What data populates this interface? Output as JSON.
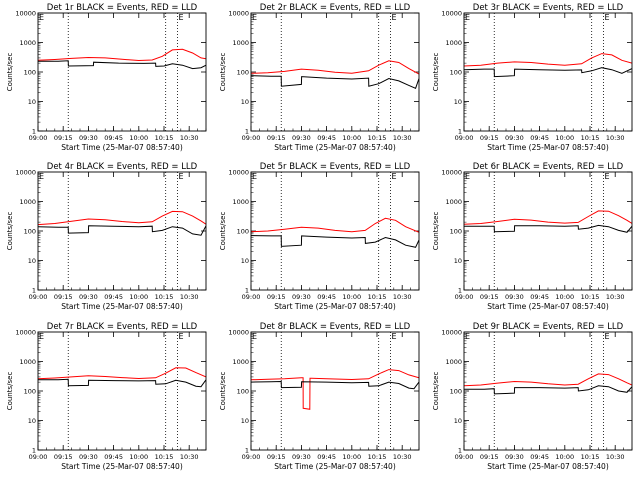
{
  "figure": {
    "x_ticks": [
      "09:00",
      "09:15",
      "09:30",
      "09:45",
      "10:00",
      "10:15",
      "10:30"
    ],
    "y_ticks": [
      "1",
      "10",
      "100",
      "1000",
      "10000"
    ],
    "marker_labels": [
      "E",
      "E"
    ]
  },
  "chart_data": [
    {
      "type": "line",
      "title": "Det 1r BLACK = Events, RED = LLD",
      "xlabel": "Start Time (25-Mar-07 08:57:40)",
      "ylabel": "Counts/sec",
      "y_scale": "log",
      "ylim": [
        1,
        10000
      ],
      "xlim_minutes": [
        0,
        100
      ],
      "x_tick_minutes": [
        0,
        15,
        30,
        45,
        60,
        75,
        90
      ],
      "dotted_vlines_minutes": [
        18,
        76,
        83
      ],
      "series": [
        {
          "name": "Events",
          "color": "#000000",
          "x": [
            0,
            12,
            18,
            18.1,
            33,
            33.1,
            48,
            63,
            70,
            70.1,
            75,
            80,
            86,
            92,
            97,
            100
          ],
          "y": [
            230,
            230,
            240,
            160,
            165,
            215,
            200,
            195,
            200,
            155,
            160,
            190,
            170,
            130,
            140,
            170
          ]
        },
        {
          "name": "LLD",
          "color": "#ff0000",
          "x": [
            0,
            10,
            20,
            30,
            40,
            50,
            60,
            68,
            74,
            80,
            86,
            92,
            97,
            100
          ],
          "y": [
            250,
            265,
            290,
            310,
            300,
            270,
            245,
            255,
            340,
            560,
            590,
            440,
            300,
            280
          ]
        }
      ]
    },
    {
      "type": "line",
      "title": "Det 2r BLACK = Events, RED = LLD",
      "xlabel": "Start Time (25-Mar-07 08:57:40)",
      "ylabel": "Counts/sec",
      "y_scale": "log",
      "ylim": [
        1,
        10000
      ],
      "xlim_minutes": [
        0,
        100
      ],
      "x_tick_minutes": [
        0,
        15,
        30,
        45,
        60,
        75,
        90
      ],
      "dotted_vlines_minutes": [
        18,
        76,
        83
      ],
      "series": [
        {
          "name": "Events",
          "color": "#000000",
          "x": [
            0,
            12,
            18,
            18.1,
            30,
            30.1,
            45,
            60,
            70,
            70.1,
            76,
            82,
            88,
            94,
            98,
            100
          ],
          "y": [
            75,
            72,
            72,
            33,
            38,
            70,
            62,
            58,
            62,
            33,
            40,
            60,
            50,
            35,
            28,
            60
          ]
        },
        {
          "name": "LLD",
          "color": "#ff0000",
          "x": [
            0,
            10,
            20,
            30,
            40,
            50,
            60,
            70,
            76,
            82,
            88,
            94,
            100
          ],
          "y": [
            90,
            95,
            105,
            125,
            115,
            98,
            90,
            110,
            170,
            240,
            210,
            130,
            85
          ]
        }
      ]
    },
    {
      "type": "line",
      "title": "Det 3r BLACK = Events, RED = LLD",
      "xlabel": "Start Time (25-Mar-07 08:57:40)",
      "ylabel": "Counts/sec",
      "y_scale": "log",
      "ylim": [
        1,
        10000
      ],
      "xlim_minutes": [
        0,
        100
      ],
      "x_tick_minutes": [
        0,
        15,
        30,
        45,
        60,
        75,
        90
      ],
      "dotted_vlines_minutes": [
        18,
        76,
        83
      ],
      "series": [
        {
          "name": "Events",
          "color": "#000000",
          "x": [
            0,
            12,
            18,
            18.1,
            30,
            30.1,
            45,
            60,
            70,
            70.1,
            76,
            82,
            88,
            94,
            100
          ],
          "y": [
            120,
            125,
            125,
            70,
            75,
            125,
            120,
            115,
            118,
            95,
            110,
            140,
            120,
            90,
            130
          ]
        },
        {
          "name": "LLD",
          "color": "#ff0000",
          "x": [
            0,
            10,
            20,
            30,
            40,
            50,
            60,
            70,
            76,
            82,
            88,
            94,
            100
          ],
          "y": [
            160,
            170,
            200,
            220,
            210,
            185,
            170,
            190,
            300,
            420,
            380,
            250,
            200
          ]
        }
      ]
    },
    {
      "type": "line",
      "title": "Det 4r BLACK = Events, RED = LLD",
      "xlabel": "Start Time (25-Mar-07 08:57:40)",
      "ylabel": "Counts/sec",
      "y_scale": "log",
      "ylim": [
        1,
        10000
      ],
      "xlim_minutes": [
        0,
        100
      ],
      "x_tick_minutes": [
        0,
        15,
        30,
        45,
        60,
        75,
        90
      ],
      "dotted_vlines_minutes": [
        18,
        76,
        83
      ],
      "series": [
        {
          "name": "Events",
          "color": "#000000",
          "x": [
            0,
            12,
            18,
            18.1,
            30,
            30.1,
            45,
            60,
            68,
            68.1,
            74,
            80,
            86,
            92,
            97,
            100
          ],
          "y": [
            140,
            135,
            135,
            85,
            88,
            150,
            145,
            140,
            145,
            95,
            105,
            140,
            125,
            80,
            72,
            150
          ]
        },
        {
          "name": "LLD",
          "color": "#ff0000",
          "x": [
            0,
            10,
            20,
            30,
            40,
            50,
            60,
            68,
            74,
            80,
            86,
            92,
            97,
            100
          ],
          "y": [
            165,
            180,
            215,
            255,
            240,
            210,
            190,
            205,
            320,
            460,
            450,
            320,
            220,
            170
          ]
        }
      ]
    },
    {
      "type": "line",
      "title": "Det 5r BLACK = Events, RED = LLD",
      "xlabel": "Start Time (25-Mar-07 08:57:40)",
      "ylabel": "Counts/sec",
      "y_scale": "log",
      "ylim": [
        1,
        10000
      ],
      "xlim_minutes": [
        0,
        100
      ],
      "x_tick_minutes": [
        0,
        15,
        30,
        45,
        60,
        75,
        90
      ],
      "dotted_vlines_minutes": [
        18,
        76,
        83
      ],
      "series": [
        {
          "name": "Events",
          "color": "#000000",
          "x": [
            0,
            12,
            18,
            18.1,
            30,
            30.1,
            45,
            60,
            68,
            68.1,
            74,
            80,
            86,
            92,
            98,
            100
          ],
          "y": [
            70,
            68,
            68,
            30,
            33,
            68,
            62,
            58,
            60,
            38,
            42,
            60,
            50,
            33,
            28,
            50
          ]
        },
        {
          "name": "LLD",
          "color": "#ff0000",
          "x": [
            0,
            10,
            20,
            30,
            40,
            50,
            60,
            68,
            74,
            80,
            86,
            92,
            100
          ],
          "y": [
            95,
            100,
            115,
            135,
            125,
            105,
            95,
            105,
            180,
            270,
            230,
            140,
            90
          ]
        }
      ]
    },
    {
      "type": "line",
      "title": "Det 6r BLACK = Events, RED = LLD",
      "xlabel": "Start Time (25-Mar-07 08:57:40)",
      "ylabel": "Counts/sec",
      "y_scale": "log",
      "ylim": [
        1,
        10000
      ],
      "xlim_minutes": [
        0,
        100
      ],
      "x_tick_minutes": [
        0,
        15,
        30,
        45,
        60,
        75,
        90
      ],
      "dotted_vlines_minutes": [
        18,
        76,
        83
      ],
      "series": [
        {
          "name": "Events",
          "color": "#000000",
          "x": [
            0,
            12,
            18,
            18.1,
            30,
            30.1,
            45,
            60,
            68,
            68.1,
            74,
            80,
            86,
            92,
            97,
            100
          ],
          "y": [
            145,
            145,
            145,
            95,
            98,
            150,
            150,
            145,
            150,
            115,
            125,
            155,
            140,
            105,
            90,
            145
          ]
        },
        {
          "name": "LLD",
          "color": "#ff0000",
          "x": [
            0,
            10,
            20,
            30,
            40,
            50,
            60,
            68,
            74,
            80,
            86,
            92,
            97,
            100
          ],
          "y": [
            170,
            180,
            210,
            250,
            235,
            200,
            185,
            195,
            310,
            480,
            470,
            330,
            230,
            180
          ]
        }
      ]
    },
    {
      "type": "line",
      "title": "Det 7r BLACK = Events, RED = LLD",
      "xlabel": "Start Time (25-Mar-07 08:57:40)",
      "ylabel": "Counts/sec",
      "y_scale": "log",
      "ylim": [
        1,
        10000
      ],
      "xlim_minutes": [
        0,
        100
      ],
      "x_tick_minutes": [
        0,
        15,
        30,
        45,
        60,
        75,
        90
      ],
      "dotted_vlines_minutes": [
        18,
        76,
        83
      ],
      "series": [
        {
          "name": "Events",
          "color": "#000000",
          "x": [
            0,
            12,
            18,
            18.1,
            30,
            30.1,
            45,
            60,
            70,
            70.1,
            76,
            82,
            88,
            94,
            97,
            100
          ],
          "y": [
            240,
            240,
            250,
            150,
            155,
            230,
            225,
            220,
            225,
            170,
            175,
            230,
            200,
            145,
            140,
            240
          ]
        },
        {
          "name": "LLD",
          "color": "#ff0000",
          "x": [
            0,
            10,
            20,
            30,
            40,
            50,
            60,
            70,
            76,
            82,
            88,
            94,
            100
          ],
          "y": [
            260,
            275,
            300,
            330,
            310,
            285,
            265,
            280,
            400,
            610,
            600,
            420,
            300
          ]
        }
      ]
    },
    {
      "type": "line",
      "title": "Det 8r BLACK = Events, RED = LLD",
      "xlabel": "Start Time (25-Mar-07 08:57:40)",
      "ylabel": "Counts/sec",
      "y_scale": "log",
      "ylim": [
        1,
        10000
      ],
      "xlim_minutes": [
        0,
        100
      ],
      "x_tick_minutes": [
        0,
        15,
        30,
        45,
        60,
        75,
        90
      ],
      "dotted_vlines_minutes": [
        18,
        76,
        83
      ],
      "series": [
        {
          "name": "Events",
          "color": "#000000",
          "x": [
            0,
            12,
            18,
            18.1,
            30,
            30.1,
            45,
            60,
            70,
            70.1,
            76,
            82,
            88,
            94,
            97,
            100
          ],
          "y": [
            200,
            205,
            210,
            130,
            135,
            205,
            200,
            190,
            195,
            145,
            150,
            200,
            180,
            125,
            120,
            200
          ]
        },
        {
          "name": "LLD",
          "color": "#ff0000",
          "x": [
            0,
            10,
            20,
            30,
            31,
            31.1,
            35,
            35.1,
            36,
            45,
            60,
            70,
            76,
            82,
            88,
            94,
            100
          ],
          "y": [
            240,
            250,
            260,
            280,
            280,
            26,
            24,
            270,
            270,
            260,
            245,
            260,
            380,
            530,
            490,
            350,
            280
          ]
        }
      ]
    },
    {
      "type": "line",
      "title": "Det 9r BLACK = Events, RED = LLD",
      "xlabel": "Start Time (25-Mar-07 08:57:40)",
      "ylabel": "Counts/sec",
      "y_scale": "log",
      "ylim": [
        1,
        10000
      ],
      "xlim_minutes": [
        0,
        100
      ],
      "x_tick_minutes": [
        0,
        15,
        30,
        45,
        60,
        75,
        90
      ],
      "dotted_vlines_minutes": [
        18,
        76,
        83
      ],
      "series": [
        {
          "name": "Events",
          "color": "#000000",
          "x": [
            0,
            12,
            18,
            18.1,
            30,
            30.1,
            45,
            60,
            68,
            68.1,
            74,
            80,
            86,
            92,
            97,
            100
          ],
          "y": [
            115,
            115,
            120,
            80,
            85,
            130,
            130,
            125,
            130,
            100,
            110,
            150,
            140,
            100,
            90,
            140
          ]
        },
        {
          "name": "LLD",
          "color": "#ff0000",
          "x": [
            0,
            10,
            20,
            30,
            40,
            50,
            60,
            68,
            74,
            80,
            86,
            92,
            97,
            100
          ],
          "y": [
            150,
            160,
            185,
            210,
            200,
            175,
            160,
            170,
            260,
            380,
            360,
            260,
            190,
            160
          ]
        }
      ]
    }
  ]
}
